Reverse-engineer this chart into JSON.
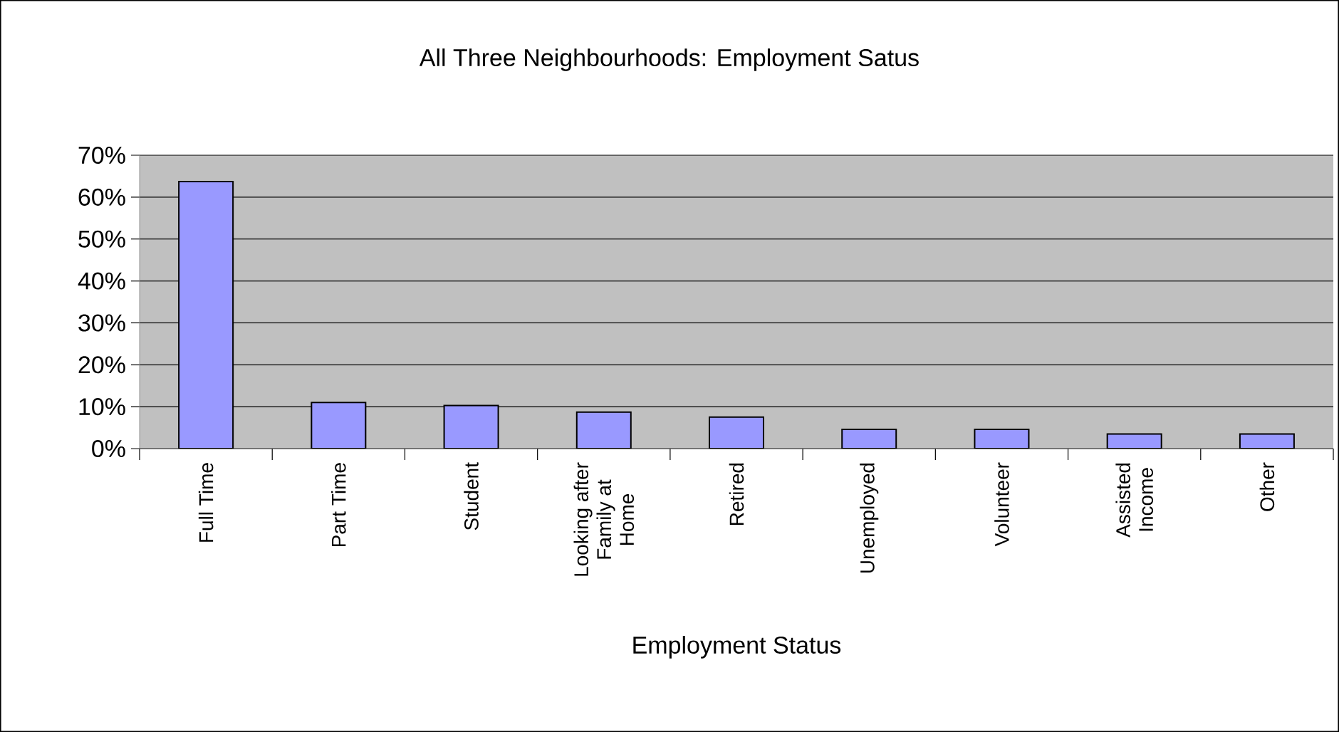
{
  "chart_data": {
    "type": "bar",
    "title": "All Three Neighbourhoods: Employment Satus",
    "xlabel": "Employment Status",
    "categories": [
      "Full Time",
      "Part Time",
      "Student",
      "Looking after Family at Home",
      "Retired",
      "Unemployed",
      "Volunteer",
      "Assisted Income",
      "Other"
    ],
    "values": [
      63.7,
      11.0,
      10.3,
      8.7,
      7.5,
      4.6,
      4.6,
      3.5,
      3.5
    ],
    "color": "#9999ff",
    "ylim": [
      0,
      70
    ],
    "yticks": [
      {
        "value": 0,
        "label": "0%"
      },
      {
        "value": 10,
        "label": "10%"
      },
      {
        "value": 20,
        "label": "20%"
      },
      {
        "value": 30,
        "label": "30%"
      },
      {
        "value": 40,
        "label": "40%"
      },
      {
        "value": 50,
        "label": "50%"
      },
      {
        "value": 60,
        "label": "60%"
      },
      {
        "value": 70,
        "label": "70%"
      }
    ],
    "grid": "y"
  }
}
